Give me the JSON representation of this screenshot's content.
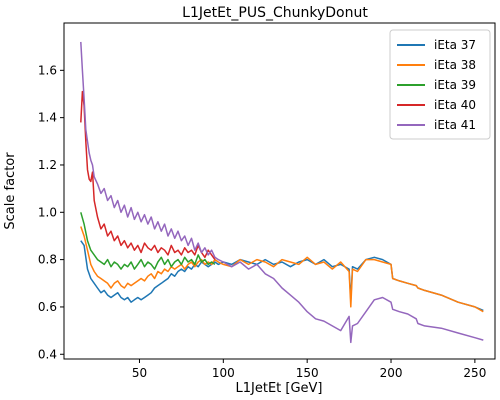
{
  "chart_data": {
    "type": "line",
    "title": "L1JetEt_PUS_ChunkyDonut",
    "xlabel": "L1JetEt [GeV]",
    "ylabel": "Scale factor",
    "xlim": [
      5,
      262
    ],
    "ylim": [
      0.38,
      1.8
    ],
    "xticks": [
      50,
      100,
      150,
      200,
      250
    ],
    "yticks": [
      0.4,
      0.6,
      0.8,
      1.0,
      1.2,
      1.4,
      1.6
    ],
    "grid": false,
    "legend_position": "top-right",
    "series": [
      {
        "name": "iEta 37",
        "color": "#1f77b4",
        "x": [
          15,
          17,
          19,
          21,
          23,
          25,
          27,
          29,
          31,
          33,
          35,
          37,
          39,
          41,
          43,
          45,
          47,
          49,
          51,
          53,
          55,
          57,
          59,
          61,
          63,
          65,
          67,
          69,
          71,
          73,
          75,
          77,
          79,
          81,
          83,
          85,
          87,
          89,
          91,
          93,
          95,
          97,
          100,
          105,
          110,
          115,
          120,
          125,
          130,
          135,
          140,
          145,
          150,
          155,
          160,
          165,
          170,
          175,
          176,
          177,
          180,
          185,
          190,
          195,
          200,
          201,
          205,
          210,
          215,
          216,
          220,
          230,
          240,
          250,
          255
        ],
        "y": [
          0.88,
          0.86,
          0.76,
          0.72,
          0.7,
          0.68,
          0.66,
          0.67,
          0.65,
          0.64,
          0.65,
          0.66,
          0.64,
          0.63,
          0.64,
          0.62,
          0.63,
          0.64,
          0.63,
          0.64,
          0.65,
          0.66,
          0.68,
          0.69,
          0.7,
          0.71,
          0.72,
          0.74,
          0.73,
          0.75,
          0.76,
          0.75,
          0.77,
          0.76,
          0.78,
          0.77,
          0.79,
          0.78,
          0.77,
          0.78,
          0.79,
          0.78,
          0.79,
          0.78,
          0.8,
          0.79,
          0.78,
          0.8,
          0.78,
          0.79,
          0.77,
          0.79,
          0.8,
          0.78,
          0.8,
          0.77,
          0.78,
          0.76,
          0.63,
          0.77,
          0.76,
          0.8,
          0.81,
          0.8,
          0.78,
          0.72,
          0.71,
          0.7,
          0.69,
          0.68,
          0.67,
          0.65,
          0.62,
          0.6,
          0.585
        ]
      },
      {
        "name": "iEta 38",
        "color": "#ff7f0e",
        "x": [
          15,
          17,
          19,
          21,
          23,
          25,
          27,
          29,
          31,
          33,
          35,
          37,
          39,
          41,
          43,
          45,
          47,
          49,
          51,
          53,
          55,
          57,
          59,
          61,
          63,
          65,
          67,
          69,
          71,
          73,
          75,
          77,
          79,
          81,
          83,
          85,
          87,
          89,
          91,
          93,
          95,
          97,
          100,
          105,
          110,
          115,
          120,
          125,
          130,
          135,
          140,
          145,
          150,
          155,
          160,
          165,
          170,
          175,
          176,
          177,
          180,
          185,
          190,
          195,
          200,
          201,
          205,
          210,
          215,
          216,
          220,
          230,
          240,
          250,
          255
        ],
        "y": [
          0.94,
          0.9,
          0.84,
          0.78,
          0.75,
          0.73,
          0.72,
          0.71,
          0.7,
          0.68,
          0.7,
          0.71,
          0.69,
          0.68,
          0.7,
          0.69,
          0.7,
          0.71,
          0.72,
          0.71,
          0.73,
          0.74,
          0.72,
          0.75,
          0.74,
          0.76,
          0.75,
          0.77,
          0.76,
          0.77,
          0.78,
          0.76,
          0.78,
          0.79,
          0.77,
          0.79,
          0.8,
          0.78,
          0.79,
          0.78,
          0.8,
          0.79,
          0.78,
          0.77,
          0.8,
          0.78,
          0.8,
          0.79,
          0.77,
          0.8,
          0.79,
          0.78,
          0.81,
          0.78,
          0.79,
          0.76,
          0.79,
          0.75,
          0.6,
          0.76,
          0.75,
          0.8,
          0.8,
          0.79,
          0.78,
          0.72,
          0.71,
          0.7,
          0.69,
          0.68,
          0.67,
          0.65,
          0.62,
          0.6,
          0.58
        ]
      },
      {
        "name": "iEta 39",
        "color": "#2ca02c",
        "x": [
          15,
          17,
          19,
          21,
          23,
          25,
          27,
          29,
          31,
          33,
          35,
          37,
          39,
          41,
          43,
          45,
          47,
          49,
          51,
          53,
          55,
          57,
          59,
          61,
          63,
          65,
          67,
          69,
          71,
          73,
          75,
          77,
          79,
          81,
          83,
          85,
          87,
          89,
          91,
          93,
          95
        ],
        "y": [
          1.0,
          0.95,
          0.88,
          0.84,
          0.82,
          0.8,
          0.79,
          0.78,
          0.8,
          0.77,
          0.79,
          0.78,
          0.76,
          0.78,
          0.77,
          0.79,
          0.76,
          0.78,
          0.8,
          0.77,
          0.79,
          0.78,
          0.76,
          0.79,
          0.81,
          0.78,
          0.8,
          0.77,
          0.79,
          0.8,
          0.78,
          0.81,
          0.79,
          0.8,
          0.78,
          0.82,
          0.79,
          0.8,
          0.78,
          0.79,
          0.78
        ]
      },
      {
        "name": "iEta 40",
        "color": "#d62728",
        "x": [
          15,
          16,
          17,
          18,
          19,
          20,
          21,
          22,
          23,
          25,
          27,
          29,
          31,
          33,
          35,
          37,
          39,
          41,
          43,
          45,
          47,
          49,
          51,
          53,
          55,
          57,
          59,
          61,
          63,
          65,
          67,
          69,
          71,
          73,
          75,
          77,
          79,
          81,
          83,
          85,
          87,
          89,
          91,
          93,
          95
        ],
        "y": [
          1.38,
          1.51,
          1.45,
          1.3,
          1.18,
          1.14,
          1.13,
          1.17,
          1.05,
          0.98,
          0.93,
          0.95,
          0.9,
          0.92,
          0.88,
          0.9,
          0.86,
          0.88,
          0.85,
          0.87,
          0.84,
          0.86,
          0.83,
          0.87,
          0.85,
          0.84,
          0.86,
          0.83,
          0.85,
          0.84,
          0.82,
          0.86,
          0.83,
          0.84,
          0.82,
          0.85,
          0.83,
          0.84,
          0.82,
          0.86,
          0.83,
          0.81,
          0.84,
          0.82,
          0.8
        ]
      },
      {
        "name": "iEta 41",
        "color": "#9467bd",
        "x": [
          15,
          16,
          17,
          18,
          19,
          20,
          21,
          22,
          23,
          25,
          27,
          29,
          31,
          33,
          35,
          37,
          39,
          41,
          43,
          45,
          47,
          49,
          51,
          53,
          55,
          57,
          59,
          61,
          63,
          65,
          67,
          69,
          71,
          73,
          75,
          77,
          79,
          81,
          83,
          85,
          87,
          89,
          91,
          93,
          95,
          97,
          100,
          105,
          110,
          115,
          120,
          125,
          130,
          135,
          140,
          145,
          150,
          155,
          160,
          165,
          170,
          175,
          176,
          177,
          180,
          185,
          190,
          195,
          200,
          201,
          205,
          210,
          215,
          216,
          220,
          230,
          240,
          250,
          255
        ],
        "y": [
          1.72,
          1.6,
          1.48,
          1.35,
          1.3,
          1.25,
          1.22,
          1.2,
          1.15,
          1.12,
          1.08,
          1.1,
          1.05,
          1.07,
          1.02,
          1.05,
          1.0,
          1.03,
          0.98,
          1.02,
          0.97,
          1.0,
          0.96,
          0.99,
          0.95,
          0.98,
          0.93,
          0.96,
          0.92,
          0.95,
          0.9,
          0.93,
          0.89,
          0.92,
          0.88,
          0.9,
          0.86,
          0.89,
          0.84,
          0.87,
          0.83,
          0.85,
          0.82,
          0.84,
          0.81,
          0.8,
          0.79,
          0.77,
          0.79,
          0.76,
          0.78,
          0.74,
          0.72,
          0.68,
          0.65,
          0.62,
          0.58,
          0.55,
          0.54,
          0.52,
          0.5,
          0.56,
          0.45,
          0.52,
          0.53,
          0.58,
          0.63,
          0.64,
          0.62,
          0.59,
          0.58,
          0.57,
          0.55,
          0.53,
          0.52,
          0.51,
          0.49,
          0.47,
          0.46
        ]
      }
    ]
  }
}
